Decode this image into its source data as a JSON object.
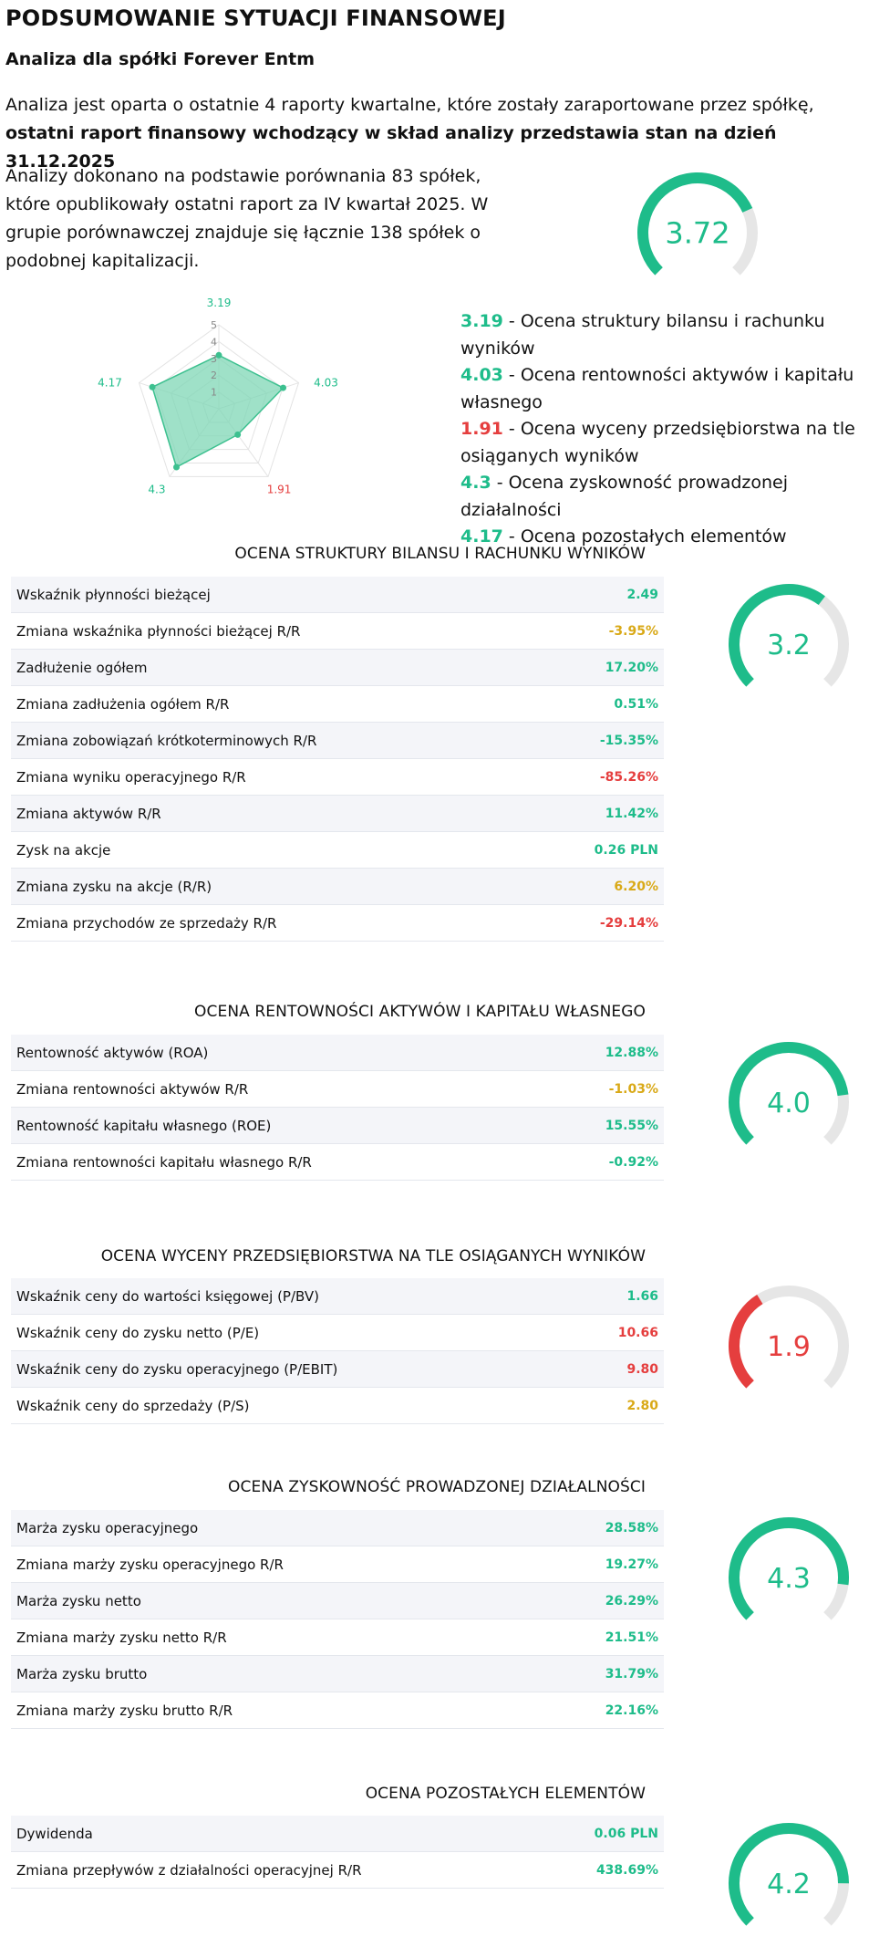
{
  "header": {
    "title": "PODSUMOWANIE SYTUACJI FINANSOWEJ",
    "subtitle": "Analiza dla spółki Forever Entm",
    "intro_text": "Analiza jest oparta o ostatnie 4 raporty kwartalne, które zostały zaraportowane przez spółkę, ",
    "intro_bold": "ostatni raport finansowy wchodzący w skład analizy przedstawia stan na dzień 31.12.2025",
    "comparison_text": "Analizy dokonano na podstawie porównania 83 spółek, które opublikowały ostatni raport za IV kwartał 2025. W grupie porównawczej znajduje się łącznie 138 spółek o podobnej kapitalizacji."
  },
  "overall": {
    "score": "3.72",
    "value": 3.72,
    "max": 5,
    "color": "#1ebc8a"
  },
  "radar": {
    "scale_labels": [
      "1",
      "2",
      "3",
      "4",
      "5"
    ],
    "points": [
      {
        "label": "3.19",
        "value": 3.19,
        "color": "#1ebc8a"
      },
      {
        "label": "4.03",
        "value": 4.03,
        "color": "#1ebc8a"
      },
      {
        "label": "1.91",
        "value": 1.91,
        "color": "#e53e3e"
      },
      {
        "label": "4.3",
        "value": 4.3,
        "color": "#1ebc8a"
      },
      {
        "label": "4.17",
        "value": 4.17,
        "color": "#1ebc8a"
      }
    ],
    "fill_color": "#7fd7b5",
    "stroke_color": "#3cc08f"
  },
  "legend": [
    {
      "score": "3.19",
      "text": " - Ocena struktury bilansu i rachunku wyników",
      "color": "#1ebc8a"
    },
    {
      "score": "4.03",
      "text": " - Ocena rentowności aktywów i kapitału własnego",
      "color": "#1ebc8a"
    },
    {
      "score": "1.91",
      "text": " - Ocena wyceny przedsiębiorstwa na tle osiąganych wyników",
      "color": "#e53e3e"
    },
    {
      "score": "4.3",
      "text": " - Ocena zyskowność prowadzonej działalności",
      "color": "#1ebc8a"
    },
    {
      "score": "4.17",
      "text": " - Ocena pozostałych elementów",
      "color": "#1ebc8a"
    }
  ],
  "sections": [
    {
      "title": "OCENA STRUKTURY BILANSU I RACHUNKU WYNIKÓW",
      "score": "3.2",
      "value": 3.19,
      "color": "#1ebc8a",
      "rows": [
        {
          "label": "Wskaźnik płynności bieżącej",
          "value": "2.49",
          "tone": "green"
        },
        {
          "label": "Zmiana wskaźnika płynności bieżącej R/R",
          "value": "-3.95%",
          "tone": "yellow"
        },
        {
          "label": "Zadłużenie ogółem",
          "value": "17.20%",
          "tone": "green"
        },
        {
          "label": "Zmiana zadłużenia ogółem R/R",
          "value": "0.51%",
          "tone": "green"
        },
        {
          "label": "Zmiana zobowiązań krótkoterminowych R/R",
          "value": "-15.35%",
          "tone": "green"
        },
        {
          "label": "Zmiana wyniku operacyjnego R/R",
          "value": "-85.26%",
          "tone": "red"
        },
        {
          "label": "Zmiana aktywów R/R",
          "value": "11.42%",
          "tone": "green"
        },
        {
          "label": "Zysk na akcje",
          "value": "0.26 PLN",
          "tone": "green"
        },
        {
          "label": "Zmiana zysku na akcje (R/R)",
          "value": "6.20%",
          "tone": "yellow"
        },
        {
          "label": "Zmiana przychodów ze sprzedaży R/R",
          "value": "-29.14%",
          "tone": "red"
        }
      ]
    },
    {
      "title": "OCENA RENTOWNOŚCI AKTYWÓW I KAPITAŁU WŁASNEGO",
      "score": "4.0",
      "value": 4.03,
      "color": "#1ebc8a",
      "rows": [
        {
          "label": "Rentowność aktywów (ROA)",
          "value": "12.88%",
          "tone": "green"
        },
        {
          "label": "Zmiana rentowności aktywów R/R",
          "value": "-1.03%",
          "tone": "yellow"
        },
        {
          "label": "Rentowność kapitału własnego (ROE)",
          "value": "15.55%",
          "tone": "green"
        },
        {
          "label": "Zmiana rentowności kapitału własnego R/R",
          "value": "-0.92%",
          "tone": "green"
        }
      ]
    },
    {
      "title": "OCENA WYCENY PRZEDSIĘBIORSTWA NA TLE OSIĄGANYCH WYNIKÓW",
      "score": "1.9",
      "value": 1.91,
      "color": "#e53e3e",
      "rows": [
        {
          "label": "Wskaźnik ceny do wartości księgowej (P/BV)",
          "value": "1.66",
          "tone": "green"
        },
        {
          "label": "Wskaźnik ceny do zysku netto (P/E)",
          "value": "10.66",
          "tone": "red"
        },
        {
          "label": "Wskaźnik ceny do zysku operacyjnego (P/EBIT)",
          "value": "9.80",
          "tone": "red"
        },
        {
          "label": "Wskaźnik ceny do sprzedaży (P/S)",
          "value": "2.80",
          "tone": "yellow"
        }
      ]
    },
    {
      "title": "OCENA ZYSKOWNOŚĆ PROWADZONEJ DZIAŁALNOŚCI",
      "score": "4.3",
      "value": 4.3,
      "color": "#1ebc8a",
      "rows": [
        {
          "label": "Marża zysku operacyjnego",
          "value": "28.58%",
          "tone": "green"
        },
        {
          "label": "Zmiana marży zysku operacyjnego R/R",
          "value": "19.27%",
          "tone": "green"
        },
        {
          "label": "Marża zysku netto",
          "value": "26.29%",
          "tone": "green"
        },
        {
          "label": "Zmiana marży zysku netto R/R",
          "value": "21.51%",
          "tone": "green"
        },
        {
          "label": "Marża zysku brutto",
          "value": "31.79%",
          "tone": "green"
        },
        {
          "label": "Zmiana marży zysku brutto R/R",
          "value": "22.16%",
          "tone": "green"
        }
      ]
    },
    {
      "title": "OCENA POZOSTAŁYCH ELEMENTÓW",
      "score": "4.2",
      "value": 4.17,
      "color": "#1ebc8a",
      "rows": [
        {
          "label": "Dywidenda",
          "value": "0.06 PLN",
          "tone": "green"
        },
        {
          "label": "Zmiana przepływów z działalności operacyjnej R/R",
          "value": "438.69%",
          "tone": "green"
        }
      ]
    }
  ]
}
